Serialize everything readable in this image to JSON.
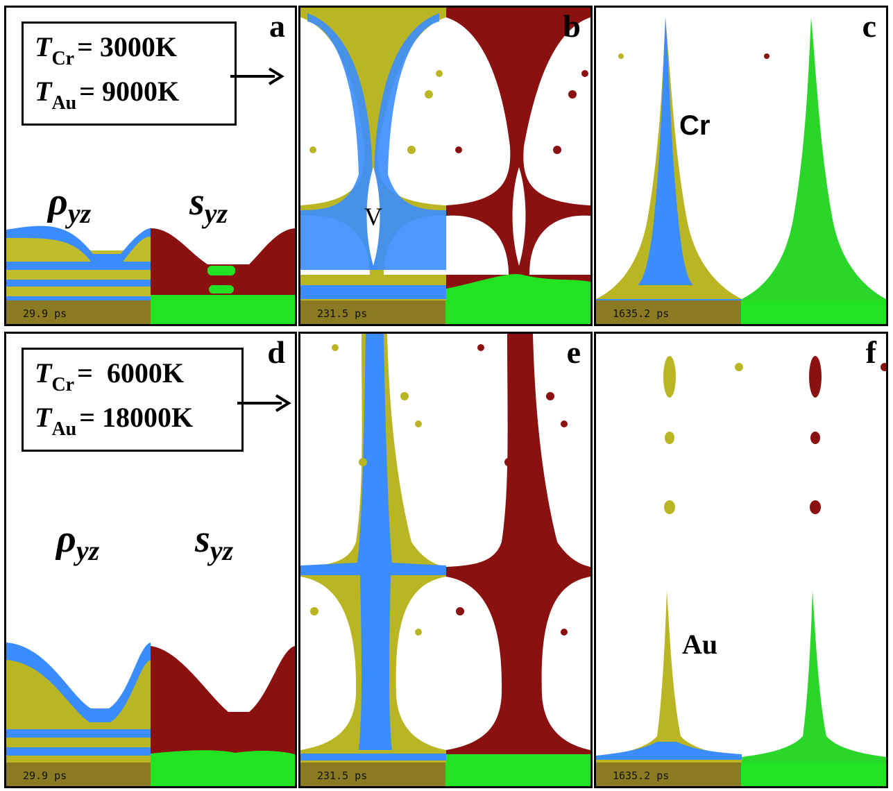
{
  "panels": [
    {
      "id": "a",
      "letter": "a",
      "time": "29.9 ps"
    },
    {
      "id": "b",
      "letter": "b",
      "time": "231.5 ps"
    },
    {
      "id": "c",
      "letter": "c",
      "time": "1635.2 ps"
    },
    {
      "id": "d",
      "letter": "d",
      "time": "29.9 ps"
    },
    {
      "id": "e",
      "letter": "e",
      "time": "231.5 ps"
    },
    {
      "id": "f",
      "letter": "f",
      "time": "1635.2 ps"
    }
  ],
  "temps_top": {
    "t_cr_sub": "Cr",
    "t_cr_val": "= 3000K",
    "t_au_sub": "Au",
    "t_au_val": "= 9000K"
  },
  "temps_bottom": {
    "t_cr_sub": "Cr",
    "t_cr_val": "=  6000K",
    "t_au_sub": "Au",
    "t_au_val": "= 18000K"
  },
  "symbols": {
    "rho": "ρ",
    "s": "s",
    "sub": "yz",
    "T": "T"
  },
  "labels": {
    "void": "V",
    "cr": "Cr",
    "au": "Au"
  },
  "colors": {
    "cr_blue": "#2a7fff",
    "au_olive": "#b9b523",
    "sy_red": "#8b1010",
    "sy_green": "#22e322",
    "timebar": "#8a7a22"
  }
}
